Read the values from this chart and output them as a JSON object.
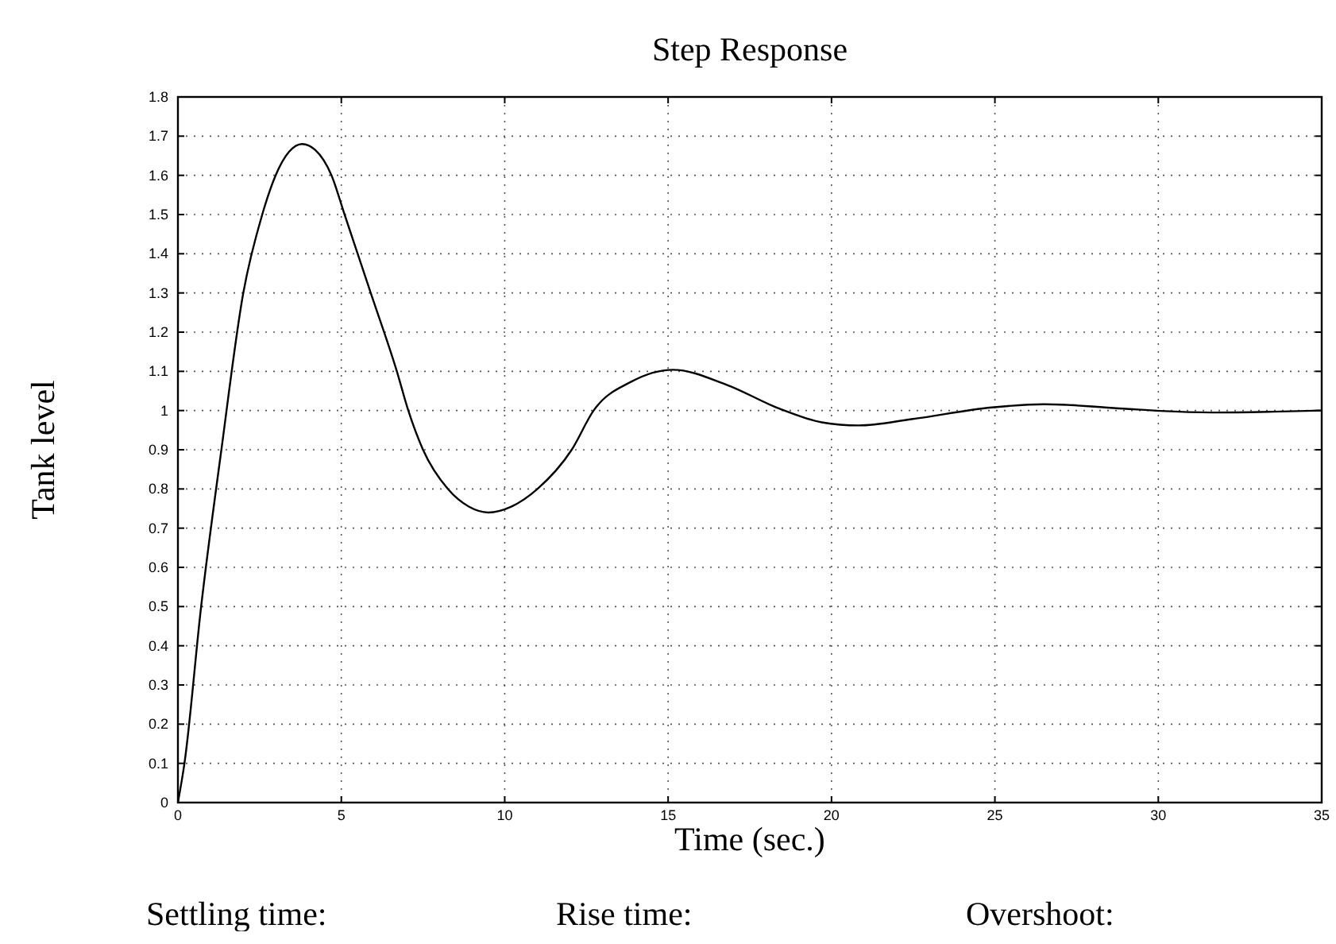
{
  "chart_data": {
    "type": "line",
    "title": "Step Response",
    "xlabel": "Time (sec.)",
    "ylabel": "Tank level",
    "annotations": [
      "Settling time:",
      "Rise time:",
      "Overshoot:"
    ],
    "xlim": [
      0,
      35
    ],
    "ylim": [
      0,
      1.8
    ],
    "xticks": [
      0,
      5,
      10,
      15,
      20,
      25,
      30,
      35
    ],
    "yticks": [
      0,
      0.1,
      0.2,
      0.3,
      0.4,
      0.5,
      0.6,
      0.7,
      0.8,
      0.9,
      1,
      1.1,
      1.2,
      1.3,
      1.4,
      1.5,
      1.6,
      1.7,
      1.8
    ],
    "grid": true,
    "line_style": "solid",
    "series": [
      {
        "color": "#000000",
        "x": [
          0,
          0.2,
          0.71,
          1.33,
          2.0,
          2.58,
          2.99,
          3.4,
          3.8,
          4.2,
          4.7,
          5.1,
          5.9,
          6.7,
          7.05,
          7.5,
          8.26,
          8.9,
          9.5,
          10.2,
          11.0,
          12.05,
          12.72,
          13.86,
          15.15,
          16.78,
          18.4,
          19.7,
          20.83,
          22.45,
          24.9,
          26.5,
          28.93,
          30.06,
          31.7,
          33.5,
          35
        ],
        "values": [
          0,
          0.1,
          0.5,
          0.9,
          1.3,
          1.5,
          1.6,
          1.66,
          1.68,
          1.665,
          1.6,
          1.5,
          1.3,
          1.1,
          1.0,
          0.9,
          0.8,
          0.755,
          0.74,
          0.755,
          0.8,
          0.9,
          1.0,
          1.073,
          1.104,
          1.066,
          1.005,
          0.97,
          0.962,
          0.978,
          1.008,
          1.016,
          1.005,
          0.999,
          0.995,
          0.997,
          1.0
        ]
      }
    ]
  }
}
